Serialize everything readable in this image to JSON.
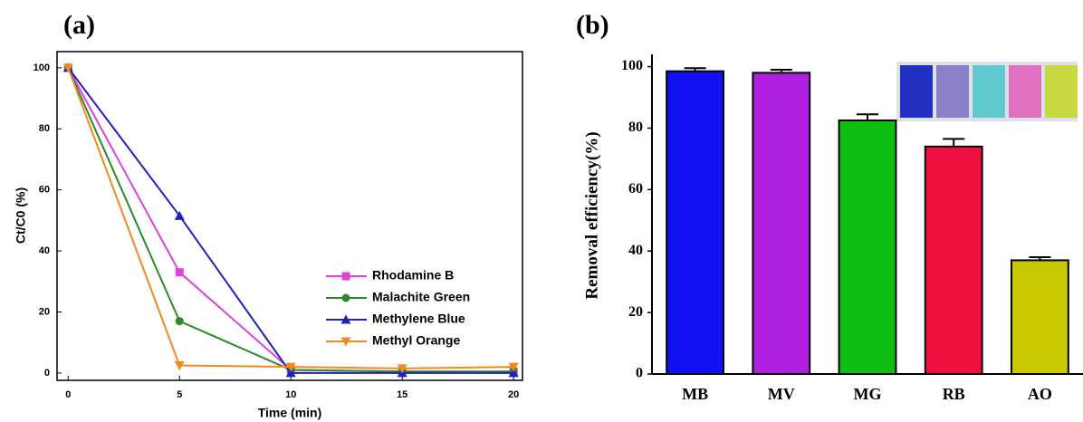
{
  "chart_data": [
    {
      "type": "line",
      "panel": "(a)",
      "x_label": "Time (min)",
      "y_label": "Ct/C0 (%)",
      "x": [
        0,
        5,
        10,
        15,
        20
      ],
      "xlim": [
        -0.5,
        20.4
      ],
      "xticks": [
        0,
        5,
        10,
        15,
        20
      ],
      "ylim": [
        -2.4,
        105.3
      ],
      "yticks": [
        0,
        20,
        40,
        60,
        80,
        100
      ],
      "series": [
        {
          "name": "Rhodamine B",
          "color": "#e040e0",
          "marker": "square",
          "values": [
            100,
            33,
            1,
            0.5,
            0.5
          ]
        },
        {
          "name": "Malachite Green",
          "color": "#2a8a2a",
          "marker": "circle",
          "values": [
            100,
            17,
            1,
            0.5,
            0.5
          ]
        },
        {
          "name": "Methylene Blue",
          "color": "#2020c0",
          "marker": "triangle-up",
          "values": [
            100,
            51.5,
            0,
            0,
            0
          ]
        },
        {
          "name": "Methyl Orange",
          "color": "#f08a20",
          "marker": "triangle-down",
          "values": [
            100,
            2.5,
            2,
            1.5,
            2
          ]
        }
      ]
    },
    {
      "type": "bar",
      "panel": "(b)",
      "y_label": "Removal efficiency(%)",
      "categories": [
        "MB",
        "MV",
        "MG",
        "RB",
        "AO"
      ],
      "values": [
        98.5,
        98,
        82.5,
        74,
        37
      ],
      "errors": [
        1,
        1,
        2,
        2.5,
        1
      ],
      "colors": [
        "#1010f0",
        "#b020e0",
        "#10c010",
        "#f01040",
        "#c8c800"
      ],
      "ylim": [
        0,
        104
      ],
      "yticks": [
        0,
        20,
        40,
        60,
        80,
        100
      ]
    }
  ]
}
